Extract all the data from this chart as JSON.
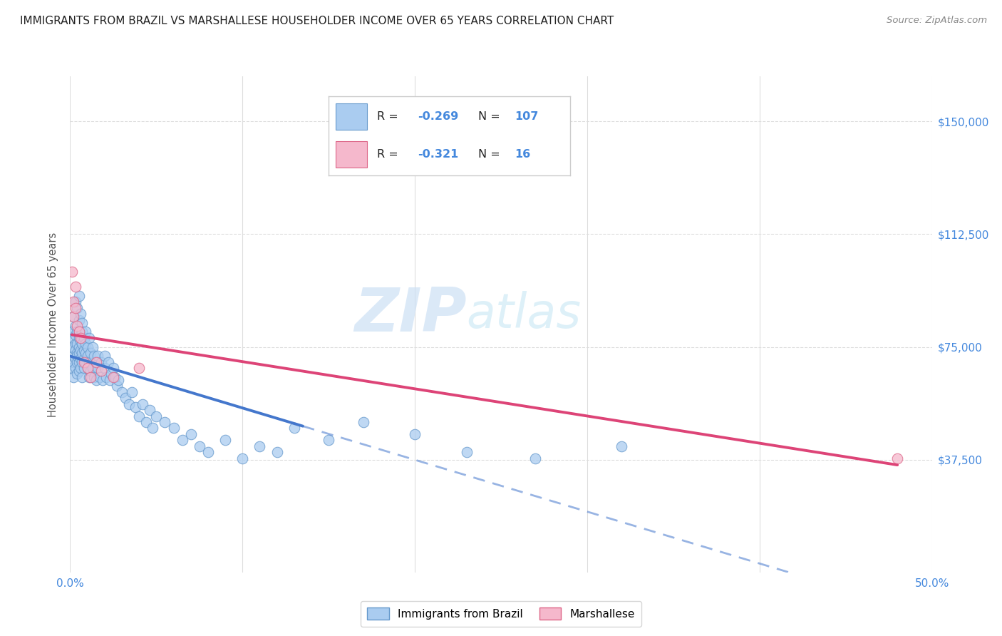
{
  "title": "IMMIGRANTS FROM BRAZIL VS MARSHALLESE HOUSEHOLDER INCOME OVER 65 YEARS CORRELATION CHART",
  "source": "Source: ZipAtlas.com",
  "ylabel": "Householder Income Over 65 years",
  "xlim": [
    0.0,
    0.5
  ],
  "ylim": [
    0,
    165000
  ],
  "yticks": [
    37500,
    75000,
    112500,
    150000
  ],
  "ytick_labels": [
    "$37,500",
    "$75,000",
    "$112,500",
    "$150,000"
  ],
  "xticks": [
    0.0,
    0.1,
    0.2,
    0.3,
    0.4,
    0.5
  ],
  "xtick_labels": [
    "0.0%",
    "",
    "",
    "",
    "",
    "50.0%"
  ],
  "brazil_color": "#aaccf0",
  "brazil_edge_color": "#6699cc",
  "marshallese_color": "#f5b8cc",
  "marshallese_edge_color": "#dd6688",
  "trend_blue": "#4477cc",
  "trend_pink": "#dd4477",
  "R_brazil": -0.269,
  "N_brazil": 107,
  "R_marshallese": -0.321,
  "N_marshallese": 16,
  "brazil_x": [
    0.001,
    0.001,
    0.001,
    0.002,
    0.002,
    0.002,
    0.002,
    0.002,
    0.003,
    0.003,
    0.003,
    0.003,
    0.003,
    0.003,
    0.003,
    0.004,
    0.004,
    0.004,
    0.004,
    0.004,
    0.004,
    0.004,
    0.005,
    0.005,
    0.005,
    0.005,
    0.005,
    0.005,
    0.005,
    0.005,
    0.006,
    0.006,
    0.006,
    0.006,
    0.006,
    0.006,
    0.007,
    0.007,
    0.007,
    0.007,
    0.007,
    0.007,
    0.008,
    0.008,
    0.008,
    0.008,
    0.009,
    0.009,
    0.009,
    0.009,
    0.01,
    0.01,
    0.01,
    0.011,
    0.011,
    0.011,
    0.012,
    0.012,
    0.013,
    0.013,
    0.014,
    0.014,
    0.015,
    0.015,
    0.016,
    0.016,
    0.017,
    0.018,
    0.019,
    0.02,
    0.02,
    0.021,
    0.022,
    0.023,
    0.024,
    0.025,
    0.026,
    0.027,
    0.028,
    0.03,
    0.032,
    0.034,
    0.036,
    0.038,
    0.04,
    0.042,
    0.044,
    0.046,
    0.048,
    0.05,
    0.055,
    0.06,
    0.065,
    0.07,
    0.075,
    0.08,
    0.09,
    0.1,
    0.11,
    0.12,
    0.13,
    0.15,
    0.17,
    0.2,
    0.23,
    0.27,
    0.32
  ],
  "brazil_y": [
    75000,
    68000,
    80000,
    85000,
    70000,
    78000,
    65000,
    72000,
    90000,
    82000,
    76000,
    71000,
    68000,
    74000,
    79000,
    88000,
    80000,
    73000,
    70000,
    76000,
    66000,
    72000,
    92000,
    84000,
    78000,
    75000,
    70000,
    67000,
    73000,
    80000,
    86000,
    79000,
    74000,
    68000,
    71000,
    77000,
    83000,
    76000,
    70000,
    65000,
    80000,
    73000,
    78000,
    71000,
    68000,
    74000,
    76000,
    70000,
    73000,
    80000,
    75000,
    68000,
    72000,
    78000,
    65000,
    70000,
    73000,
    67000,
    75000,
    68000,
    72000,
    65000,
    70000,
    64000,
    68000,
    72000,
    65000,
    70000,
    64000,
    68000,
    72000,
    65000,
    70000,
    64000,
    66000,
    68000,
    65000,
    62000,
    64000,
    60000,
    58000,
    56000,
    60000,
    55000,
    52000,
    56000,
    50000,
    54000,
    48000,
    52000,
    50000,
    48000,
    44000,
    46000,
    42000,
    40000,
    44000,
    38000,
    42000,
    40000,
    48000,
    44000,
    50000,
    46000,
    40000,
    38000,
    42000
  ],
  "marshallese_x": [
    0.001,
    0.002,
    0.002,
    0.003,
    0.003,
    0.004,
    0.005,
    0.006,
    0.008,
    0.01,
    0.012,
    0.015,
    0.018,
    0.025,
    0.04,
    0.48
  ],
  "marshallese_y": [
    100000,
    90000,
    85000,
    95000,
    88000,
    82000,
    80000,
    78000,
    70000,
    68000,
    65000,
    70000,
    67000,
    65000,
    68000,
    38000
  ],
  "brazil_line_x_end": 0.135,
  "brazil_line_x_dash_end": 0.5,
  "marsh_line_x_start": 0.001,
  "marsh_line_x_end": 0.48,
  "watermark_zip": "ZIP",
  "watermark_atlas": "atlas",
  "background_color": "#ffffff",
  "grid_color": "#dddddd",
  "axis_color": "#4488dd",
  "title_color": "#222222",
  "source_color": "#888888"
}
